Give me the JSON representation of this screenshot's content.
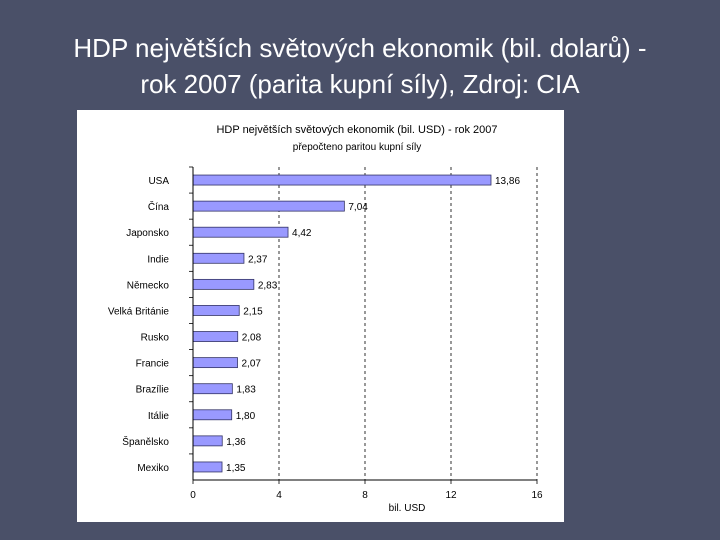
{
  "slide": {
    "title_line1": "HDP největších světových ekonomik (bil. dolarů) -",
    "title_line2": "rok 2007 (parita kupní síly), Zdroj: CIA"
  },
  "colors": {
    "background": "#4a5068",
    "bar_fill": "#9999ff",
    "bar_stroke": "#333366"
  },
  "chart_data": {
    "type": "bar",
    "orientation": "horizontal",
    "title": "HDP největších světových ekonomik (bil. USD) - rok 2007",
    "subtitle": "přepočteno paritou kupní síly",
    "xlabel": "bil. USD",
    "ylabel": "",
    "xlim": [
      0,
      16
    ],
    "xticks": [
      0,
      4,
      8,
      12,
      16
    ],
    "grid": "vertical dashed",
    "categories": [
      "USA",
      "Čína",
      "Japonsko",
      "Indie",
      "Německo",
      "Velká Británie",
      "Rusko",
      "Francie",
      "Brazílie",
      "Itálie",
      "Španělsko",
      "Mexiko"
    ],
    "values": [
      13.86,
      7.04,
      4.42,
      2.37,
      2.83,
      2.15,
      2.08,
      2.07,
      1.83,
      1.8,
      1.36,
      1.35
    ],
    "value_labels": [
      "13,86",
      "7,04",
      "4,42",
      "2,37",
      "2,83",
      "2,15",
      "2,08",
      "2,07",
      "1,83",
      "1,80",
      "1,36",
      "1,35"
    ]
  }
}
